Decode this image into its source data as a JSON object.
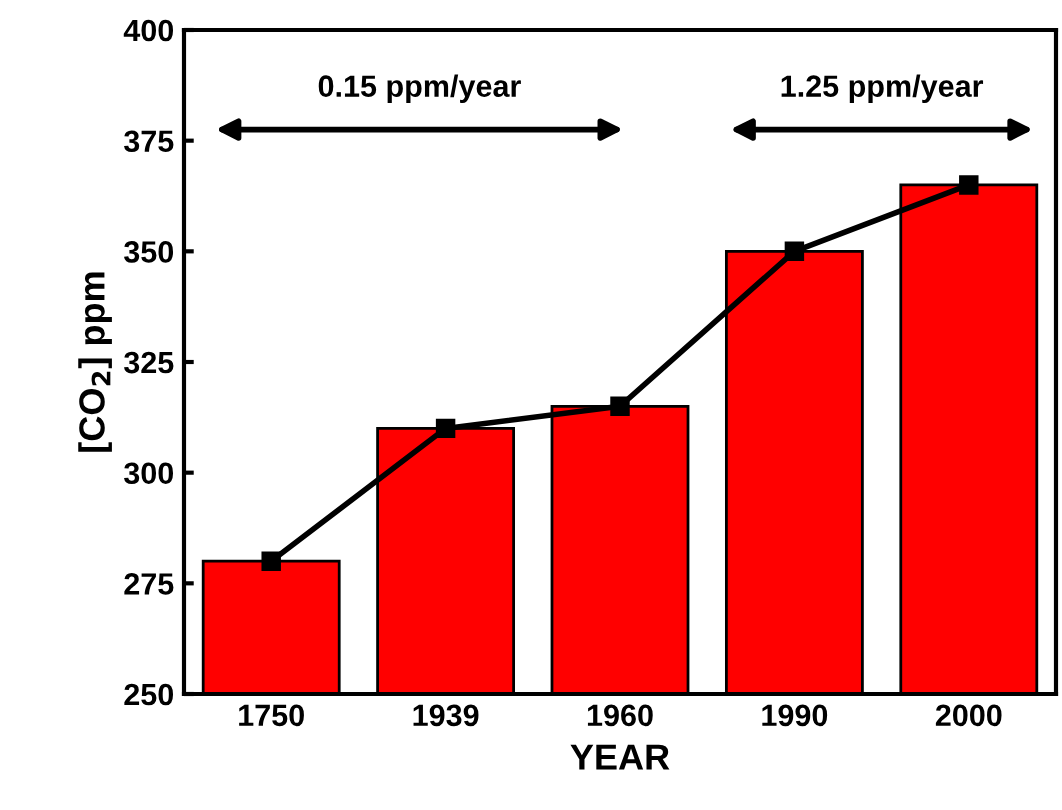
{
  "chart_data": {
    "type": "bar",
    "xlabel": "YEAR",
    "ylabel": "[CO$_{2}$] ppm",
    "categories": [
      "1750",
      "1939",
      "1960",
      "1990",
      "2000"
    ],
    "series": [
      {
        "color": "#ff0000",
        "values": [
          280,
          310,
          315,
          350,
          365
        ]
      },
      {
        "type": "line",
        "color": "#000000",
        "values": [
          280,
          310,
          315,
          350,
          365
        ],
        "marker": "square",
        "line_style": "solid"
      }
    ],
    "ylim": [
      250,
      400
    ],
    "yticks": [
      250,
      275,
      300,
      325,
      350,
      375,
      400
    ],
    "grid": false,
    "annotations": [
      "0.15 ppm/year",
      "1.25 ppm/year"
    ]
  }
}
